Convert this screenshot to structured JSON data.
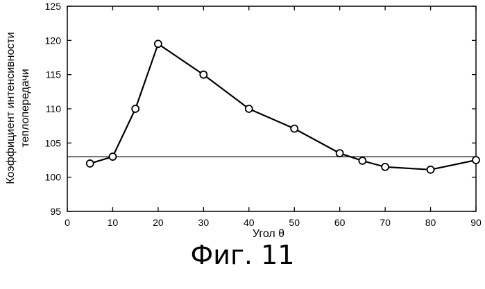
{
  "chart_data": {
    "type": "line",
    "title": "",
    "xlabel": "Угол θ",
    "ylabel": [
      "Коэффициент интенсивности",
      "теплопередачи"
    ],
    "xlim": [
      0,
      90
    ],
    "ylim": [
      95,
      125
    ],
    "xticks": [
      0,
      10,
      20,
      30,
      40,
      50,
      60,
      70,
      80,
      90
    ],
    "yticks": [
      95,
      100,
      105,
      110,
      115,
      120,
      125
    ],
    "grid": false,
    "legend": "none",
    "series": [
      {
        "x": [
          5,
          10,
          15,
          20,
          30,
          40,
          50,
          60,
          65,
          70,
          80,
          90
        ],
        "y": [
          102,
          103,
          110,
          119.5,
          115,
          110,
          107.1,
          103.5,
          102.4,
          101.5,
          101.1,
          102.5
        ],
        "marker": "open-circle",
        "color": "#000000"
      }
    ],
    "reference_lines": [
      {
        "y": 103
      }
    ]
  },
  "figure": {
    "caption": "Фиг. 11"
  }
}
